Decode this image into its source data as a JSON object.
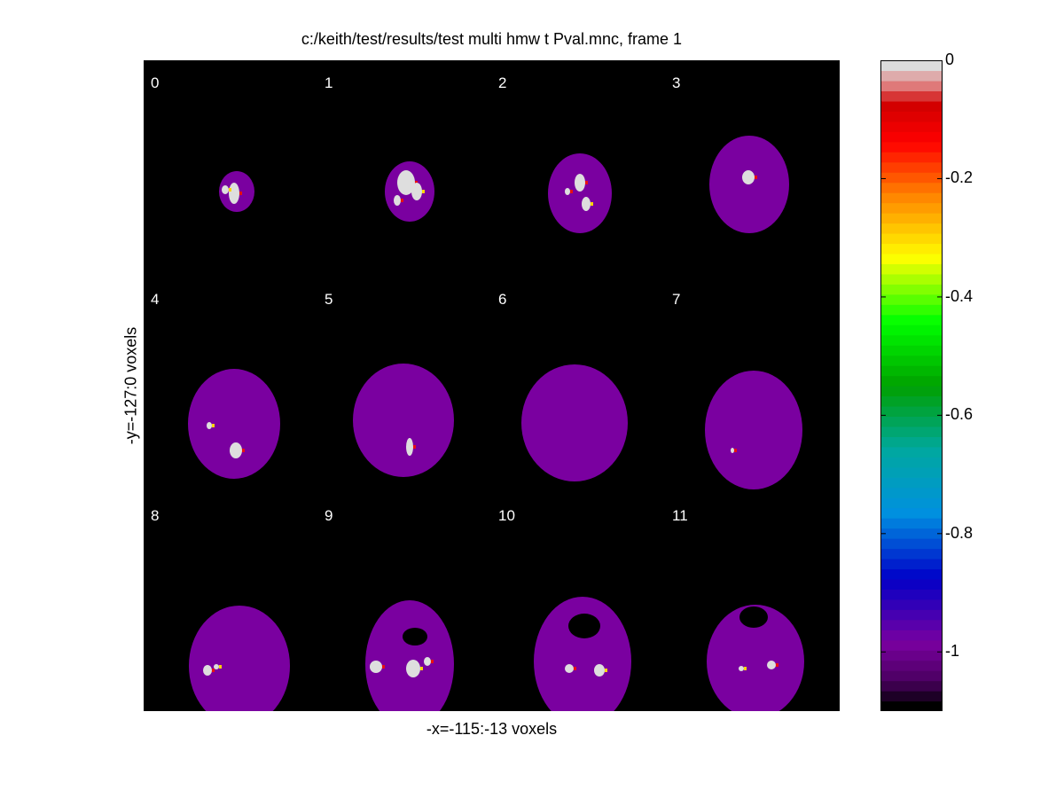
{
  "chart_data": {
    "type": "heatmap",
    "title": "c:/keith/test/results/test multi hmw t Pval.mnc, frame 1",
    "xlabel": "-x=-115:-13 voxels",
    "ylabel": "-y=-127:0 voxels",
    "slices": [
      "0",
      "1",
      "2",
      "3",
      "4",
      "5",
      "6",
      "7",
      "8",
      "9",
      "10",
      "11"
    ],
    "grid": {
      "rows": 3,
      "cols": 4
    },
    "colorbar": {
      "range": [
        -1.1,
        0
      ],
      "ticks": [
        {
          "value": 0,
          "label": "0"
        },
        {
          "value": -0.2,
          "label": "-0.2"
        },
        {
          "value": -0.4,
          "label": "-0.4"
        },
        {
          "value": -0.6,
          "label": "-0.6"
        },
        {
          "value": -0.8,
          "label": "-0.8"
        },
        {
          "value": -1,
          "label": "-1"
        }
      ],
      "colormap": "spectral"
    }
  },
  "colors": {
    "background": "#000000",
    "brain": "#7a00a0",
    "hot_spot": "#dedede"
  }
}
